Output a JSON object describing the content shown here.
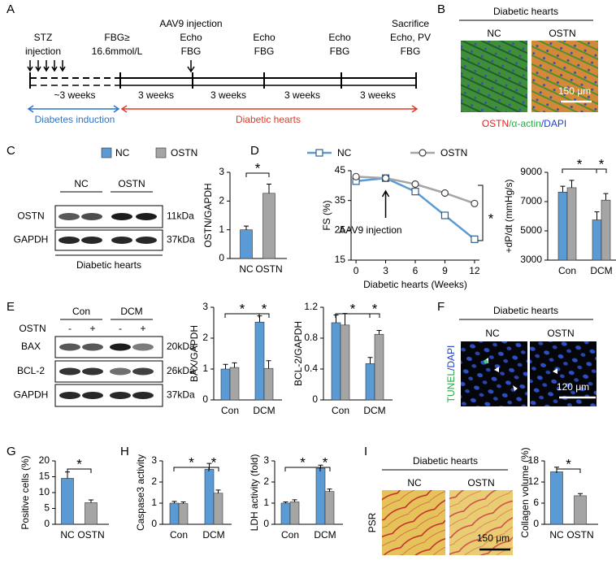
{
  "panel_labels": [
    "A",
    "B",
    "C",
    "D",
    "E",
    "F",
    "G",
    "H",
    "I"
  ],
  "timeline": {
    "events": [
      [
        "STZ",
        "injection"
      ],
      [
        "FBG≥",
        "16.6mmol/L"
      ],
      [
        "AAV9 injection",
        "Echo",
        "FBG"
      ],
      [
        "Echo",
        "FBG"
      ],
      [
        "Echo",
        "FBG"
      ],
      [
        "Sacrifice",
        "Echo, PV",
        "FBG"
      ]
    ],
    "durations": [
      "~3 weeks",
      "3 weeks",
      "3 weeks",
      "3 weeks",
      "3 weeks"
    ],
    "phases": [
      "Diabetes induction",
      "Diabetic hearts"
    ]
  },
  "panel_b": {
    "title": "Diabetic hearts",
    "groups": [
      "NC",
      "OSTN"
    ],
    "scale_bar": "150 μm",
    "stain": [
      "OSTN",
      "/α-actin",
      "/DAPI"
    ]
  },
  "legend": [
    {
      "name": "NC",
      "color": "#5b9bd5"
    },
    {
      "name": "OSTN",
      "color": "#a5a5a5"
    }
  ],
  "blot_c": {
    "groups": [
      "NC",
      "OSTN"
    ],
    "rows": [
      {
        "protein": "OSTN",
        "size": "11kDa"
      },
      {
        "protein": "GAPDH",
        "size": "37kDa"
      }
    ],
    "caption": "Diabetic hearts"
  },
  "blot_e": {
    "groups": [
      "Con",
      "DCM"
    ],
    "treatment": "OSTN",
    "treatment_signs": [
      "-",
      "+",
      "-",
      "+"
    ],
    "rows": [
      {
        "protein": "BAX",
        "size": "20kDa"
      },
      {
        "protein": "BCL-2",
        "size": "26kDa"
      },
      {
        "protein": "GAPDH",
        "size": "37kDa"
      }
    ]
  },
  "panel_f": {
    "title": "Diabetic hearts",
    "groups": [
      "NC",
      "OSTN"
    ],
    "scale_bar": "120 μm",
    "stain": [
      "TUNEL",
      "/DAPI"
    ]
  },
  "panel_i": {
    "title": "Diabetic hearts",
    "groups": [
      "NC",
      "OSTN"
    ],
    "scale_bar": "150 μm",
    "stain": [
      "PSR"
    ]
  },
  "chart_data": [
    {
      "type": "bar",
      "ylabel": "OSTN/GAPDH",
      "categories": [
        "NC",
        "OSTN"
      ],
      "values": [
        1.0,
        2.27
      ],
      "errors": [
        0.13,
        0.32
      ],
      "colors": [
        "#5b9bd5",
        "#a5a5a5"
      ],
      "ylim": [
        0,
        3
      ],
      "yticks": [
        0,
        1,
        2,
        3
      ],
      "significance": [
        "*"
      ]
    },
    {
      "type": "line",
      "ylabel": "FS (%)",
      "xlabel": "Diabetic hearts (Weeks)",
      "x": [
        0,
        3,
        6,
        9,
        12
      ],
      "xlim": [
        -0.5,
        12.5
      ],
      "xticks": [
        0,
        3,
        6,
        9,
        12
      ],
      "ylim": [
        15,
        45
      ],
      "yticks": [
        15,
        25,
        35,
        45
      ],
      "series": [
        {
          "name": "NC",
          "color": "#5b9bd5",
          "marker": "square",
          "values": [
            41.5,
            42.5,
            38,
            30,
            22
          ]
        },
        {
          "name": "OSTN",
          "color": "#a5a5a5",
          "marker": "circle",
          "values": [
            43,
            42.5,
            40.5,
            37.5,
            34
          ]
        }
      ],
      "annotations": [
        "AAV9 injection"
      ],
      "significance": [
        "*"
      ]
    },
    {
      "type": "bar",
      "ylabel": "+dP/dt (mmHg/s)",
      "categories": [
        "Con",
        "DCM"
      ],
      "ylim": [
        3000,
        9000
      ],
      "yticks": [
        3000,
        5000,
        7000,
        9000
      ],
      "series": [
        {
          "color": "#5b9bd5",
          "values": [
            7650,
            5750
          ],
          "errors": [
            400,
            550
          ]
        },
        {
          "color": "#a5a5a5",
          "values": [
            7950,
            7100
          ],
          "errors": [
            500,
            450
          ]
        }
      ],
      "significance": [
        "*",
        "*"
      ]
    },
    {
      "type": "bar",
      "ylabel": "BAX/GAPDH",
      "categories": [
        "Con",
        "DCM"
      ],
      "ylim": [
        0,
        3
      ],
      "yticks": [
        0,
        1,
        2,
        3
      ],
      "series": [
        {
          "color": "#5b9bd5",
          "values": [
            1.0,
            2.52
          ],
          "errors": [
            0.15,
            0.2
          ]
        },
        {
          "color": "#a5a5a5",
          "values": [
            1.05,
            1.02
          ],
          "errors": [
            0.15,
            0.25
          ]
        }
      ],
      "significance": [
        "*",
        "*"
      ]
    },
    {
      "type": "bar",
      "ylabel": "BCL-2/GAPDH",
      "categories": [
        "Con",
        "DCM"
      ],
      "ylim": [
        0,
        1.2
      ],
      "yticks": [
        0,
        0.4,
        0.8,
        1.2
      ],
      "series": [
        {
          "color": "#5b9bd5",
          "values": [
            1.0,
            0.47
          ],
          "errors": [
            0.1,
            0.08
          ]
        },
        {
          "color": "#a5a5a5",
          "values": [
            0.97,
            0.85
          ],
          "errors": [
            0.15,
            0.05
          ]
        }
      ],
      "significance": [
        "*",
        "*"
      ]
    },
    {
      "type": "bar",
      "ylabel": "Positive cells (%)",
      "categories": [
        "NC",
        "OSTN"
      ],
      "values": [
        14.5,
        6.8
      ],
      "errors": [
        2.0,
        0.9
      ],
      "colors": [
        "#5b9bd5",
        "#a5a5a5"
      ],
      "ylim": [
        0,
        20
      ],
      "yticks": [
        0,
        5,
        10,
        15,
        20
      ],
      "significance": [
        "*"
      ]
    },
    {
      "type": "bar",
      "ylabel": "Caspase3 activity",
      "categories": [
        "Con",
        "DCM"
      ],
      "ylim": [
        0,
        3
      ],
      "yticks": [
        0,
        1,
        2,
        3
      ],
      "series": [
        {
          "color": "#5b9bd5",
          "values": [
            1.0,
            2.6
          ],
          "errors": [
            0.08,
            0.28
          ]
        },
        {
          "color": "#a5a5a5",
          "values": [
            0.98,
            1.47
          ],
          "errors": [
            0.08,
            0.15
          ]
        }
      ],
      "significance": [
        "*",
        "*"
      ]
    },
    {
      "type": "bar",
      "ylabel": "LDH activity (fold)",
      "categories": [
        "Con",
        "DCM"
      ],
      "ylim": [
        0,
        3
      ],
      "yticks": [
        0,
        1,
        2,
        3
      ],
      "series": [
        {
          "color": "#5b9bd5",
          "values": [
            1.0,
            2.65
          ],
          "errors": [
            0.06,
            0.15
          ]
        },
        {
          "color": "#a5a5a5",
          "values": [
            1.06,
            1.55
          ],
          "errors": [
            0.1,
            0.12
          ]
        }
      ],
      "significance": [
        "*",
        "*"
      ]
    },
    {
      "type": "bar",
      "ylabel": "Collagen volume (%)",
      "categories": [
        "NC",
        "OSTN"
      ],
      "values": [
        14.9,
        8.1
      ],
      "errors": [
        1.3,
        0.6
      ],
      "colors": [
        "#5b9bd5",
        "#a5a5a5"
      ],
      "ylim": [
        0,
        18
      ],
      "yticks": [
        0,
        6,
        12,
        18
      ],
      "significance": [
        "*"
      ]
    }
  ]
}
